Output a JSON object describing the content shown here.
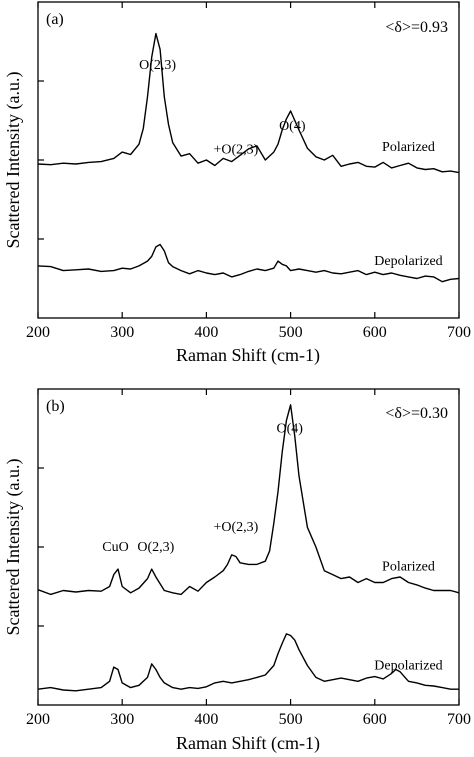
{
  "chart_data": [
    {
      "type": "line",
      "panel_label": "(a)",
      "delta_label": "<δ>=0.93",
      "xlabel": "Raman Shift (cm-1)",
      "ylabel": "Scattered Intensity (a.u.)",
      "xlim": [
        200,
        700
      ],
      "x_ticks": [
        200,
        300,
        400,
        500,
        600,
        700
      ],
      "tick_labels": [
        "200",
        "300",
        "400",
        "500",
        "600",
        "700"
      ],
      "ylim": [
        0,
        4
      ],
      "y_ticks": [
        1,
        2,
        3
      ],
      "annotations": [
        {
          "text": "O(2,3)",
          "x": 342,
          "y": 3.15
        },
        {
          "text": "+O(2,3)",
          "x": 435,
          "y": 2.08
        },
        {
          "text": "O(4)",
          "x": 502,
          "y": 2.38
        }
      ],
      "series": [
        {
          "name": "Polarized",
          "x": [
            200,
            215,
            230,
            245,
            260,
            275,
            290,
            300,
            310,
            320,
            325,
            330,
            335,
            340,
            345,
            350,
            355,
            360,
            370,
            380,
            390,
            400,
            410,
            420,
            430,
            440,
            450,
            460,
            470,
            480,
            485,
            490,
            495,
            500,
            505,
            510,
            520,
            530,
            540,
            550,
            560,
            570,
            580,
            590,
            600,
            610,
            620,
            630,
            640,
            650,
            660,
            670,
            680,
            690,
            700
          ],
          "y": [
            1.95,
            1.94,
            1.96,
            1.95,
            1.97,
            1.98,
            2.02,
            2.1,
            2.07,
            2.2,
            2.4,
            2.8,
            3.3,
            3.6,
            3.4,
            2.8,
            2.45,
            2.22,
            2.05,
            2.08,
            1.96,
            2.0,
            1.93,
            2.02,
            1.98,
            2.06,
            2.14,
            2.18,
            2.0,
            2.1,
            2.2,
            2.38,
            2.52,
            2.62,
            2.5,
            2.38,
            2.15,
            2.04,
            2.0,
            2.06,
            1.92,
            1.95,
            1.97,
            1.92,
            1.91,
            1.97,
            1.9,
            1.93,
            1.96,
            1.9,
            1.88,
            1.89,
            1.85,
            1.86,
            1.84
          ]
        },
        {
          "name": "Depolarized",
          "x": [
            200,
            215,
            230,
            245,
            260,
            275,
            290,
            300,
            310,
            320,
            330,
            335,
            340,
            345,
            350,
            355,
            360,
            370,
            380,
            390,
            400,
            410,
            420,
            430,
            440,
            450,
            460,
            470,
            480,
            485,
            490,
            495,
            500,
            510,
            520,
            530,
            540,
            550,
            560,
            570,
            580,
            590,
            600,
            610,
            620,
            630,
            640,
            650,
            660,
            670,
            680,
            690,
            700
          ],
          "y": [
            0.66,
            0.65,
            0.6,
            0.61,
            0.62,
            0.59,
            0.6,
            0.63,
            0.62,
            0.66,
            0.72,
            0.78,
            0.9,
            0.93,
            0.85,
            0.7,
            0.65,
            0.6,
            0.56,
            0.6,
            0.57,
            0.55,
            0.57,
            0.52,
            0.55,
            0.59,
            0.62,
            0.6,
            0.63,
            0.72,
            0.68,
            0.66,
            0.6,
            0.62,
            0.6,
            0.58,
            0.6,
            0.57,
            0.56,
            0.58,
            0.6,
            0.55,
            0.58,
            0.55,
            0.57,
            0.54,
            0.52,
            0.5,
            0.53,
            0.52,
            0.46,
            0.49,
            0.5
          ]
        }
      ]
    },
    {
      "type": "line",
      "panel_label": "(b)",
      "delta_label": "<δ>=0.30",
      "xlabel": "Raman Shift (cm-1)",
      "ylabel": "Scattered Intensity (a.u.)",
      "xlim": [
        200,
        700
      ],
      "x_ticks": [
        200,
        300,
        400,
        500,
        600,
        700
      ],
      "tick_labels": [
        "200",
        "300",
        "400",
        "500",
        "600",
        "700"
      ],
      "ylim": [
        0,
        4
      ],
      "y_ticks": [
        1,
        2,
        3
      ],
      "annotations": [
        {
          "text": "CuO",
          "x": 292,
          "y": 1.95
        },
        {
          "text": "O(2,3)",
          "x": 340,
          "y": 1.95
        },
        {
          "text": "+O(2,3)",
          "x": 435,
          "y": 2.2
        },
        {
          "text": "O(4)",
          "x": 499,
          "y": 3.45
        }
      ],
      "series": [
        {
          "name": "Polarized",
          "x": [
            200,
            215,
            230,
            245,
            260,
            275,
            285,
            290,
            295,
            300,
            310,
            320,
            330,
            335,
            340,
            350,
            360,
            370,
            380,
            390,
            400,
            410,
            420,
            425,
            430,
            435,
            440,
            450,
            460,
            470,
            475,
            480,
            485,
            490,
            495,
            500,
            505,
            510,
            520,
            530,
            540,
            550,
            560,
            570,
            580,
            590,
            600,
            610,
            620,
            630,
            640,
            650,
            660,
            670,
            680,
            690,
            700
          ],
          "y": [
            1.46,
            1.4,
            1.45,
            1.43,
            1.45,
            1.44,
            1.5,
            1.65,
            1.72,
            1.5,
            1.42,
            1.48,
            1.6,
            1.72,
            1.62,
            1.45,
            1.42,
            1.4,
            1.5,
            1.44,
            1.55,
            1.62,
            1.7,
            1.78,
            1.9,
            1.88,
            1.8,
            1.78,
            1.78,
            1.82,
            1.95,
            2.3,
            2.7,
            3.2,
            3.6,
            3.8,
            3.4,
            2.9,
            2.25,
            2.0,
            1.7,
            1.65,
            1.6,
            1.62,
            1.55,
            1.6,
            1.55,
            1.55,
            1.6,
            1.62,
            1.55,
            1.52,
            1.48,
            1.45,
            1.45,
            1.45,
            1.42
          ]
        },
        {
          "name": "Depolarized",
          "x": [
            200,
            215,
            230,
            245,
            260,
            275,
            285,
            290,
            295,
            300,
            310,
            320,
            330,
            335,
            340,
            345,
            350,
            360,
            370,
            380,
            390,
            400,
            410,
            420,
            430,
            440,
            450,
            460,
            470,
            480,
            485,
            490,
            495,
            500,
            505,
            510,
            520,
            530,
            540,
            550,
            560,
            570,
            580,
            590,
            600,
            610,
            620,
            625,
            630,
            640,
            650,
            660,
            670,
            680,
            690,
            700
          ],
          "y": [
            0.2,
            0.22,
            0.19,
            0.18,
            0.2,
            0.22,
            0.3,
            0.48,
            0.45,
            0.28,
            0.22,
            0.25,
            0.35,
            0.52,
            0.45,
            0.35,
            0.28,
            0.22,
            0.2,
            0.22,
            0.21,
            0.23,
            0.28,
            0.3,
            0.28,
            0.3,
            0.32,
            0.35,
            0.38,
            0.5,
            0.65,
            0.78,
            0.9,
            0.88,
            0.82,
            0.7,
            0.5,
            0.35,
            0.3,
            0.32,
            0.34,
            0.32,
            0.3,
            0.34,
            0.36,
            0.33,
            0.4,
            0.45,
            0.42,
            0.3,
            0.28,
            0.25,
            0.24,
            0.22,
            0.2,
            0.2
          ]
        }
      ]
    }
  ]
}
